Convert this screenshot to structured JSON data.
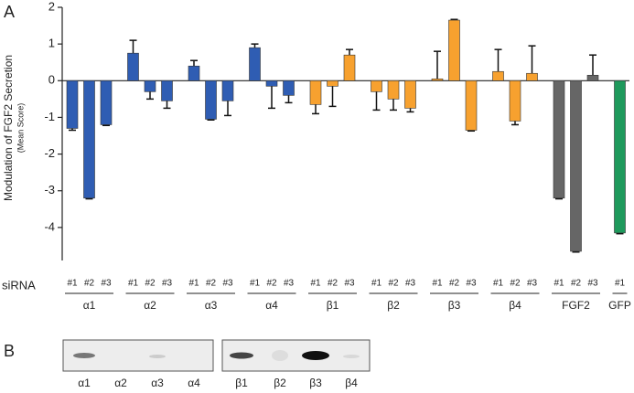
{
  "chart_data": {
    "type": "bar",
    "panel_label": "A",
    "y_label": "Modulation of FGF2 Secretion",
    "y_sublabel": "(Mean Score)",
    "x_label": "siRNA",
    "ylim": [
      -4.9,
      2
    ],
    "yticks": [
      2,
      1,
      0,
      -1,
      -2,
      -3,
      -4
    ],
    "groups": [
      {
        "name": "α1",
        "color": "#2f5db3",
        "labels": [
          "#1",
          "#2",
          "#3"
        ],
        "values": [
          -1.3,
          -3.2,
          -1.2
        ],
        "errors": [
          0.05,
          0.02,
          0.02
        ]
      },
      {
        "name": "α2",
        "color": "#2f5db3",
        "labels": [
          "#1",
          "#2",
          "#3"
        ],
        "values": [
          0.75,
          -0.3,
          -0.55
        ],
        "errors": [
          0.35,
          0.2,
          0.2
        ]
      },
      {
        "name": "α3",
        "color": "#2f5db3",
        "labels": [
          "#1",
          "#2",
          "#3"
        ],
        "values": [
          0.4,
          -1.05,
          -0.55
        ],
        "errors": [
          0.15,
          0.02,
          0.4
        ]
      },
      {
        "name": "α4",
        "color": "#2f5db3",
        "labels": [
          "#1",
          "#2",
          "#3"
        ],
        "values": [
          0.9,
          -0.15,
          -0.4
        ],
        "errors": [
          0.1,
          0.6,
          0.2
        ]
      },
      {
        "name": "β1",
        "color": "#f7a12f",
        "labels": [
          "#1",
          "#2",
          "#3"
        ],
        "values": [
          -0.65,
          -0.15,
          0.7
        ],
        "errors": [
          0.25,
          0.55,
          0.15
        ]
      },
      {
        "name": "β2",
        "color": "#f7a12f",
        "labels": [
          "#1",
          "#2",
          "#3"
        ],
        "values": [
          -0.3,
          -0.5,
          -0.75
        ],
        "errors": [
          0.5,
          0.3,
          0.1
        ]
      },
      {
        "name": "β3",
        "color": "#f7a12f",
        "labels": [
          "#1",
          "#2",
          "#3"
        ],
        "values": [
          0.05,
          1.65,
          -1.35
        ],
        "errors": [
          0.75,
          0.02,
          0.02
        ]
      },
      {
        "name": "β4",
        "color": "#f7a12f",
        "labels": [
          "#1",
          "#2",
          "#3"
        ],
        "values": [
          0.25,
          -1.1,
          0.2
        ],
        "errors": [
          0.6,
          0.1,
          0.75
        ]
      },
      {
        "name": "FGF2",
        "color": "#666666",
        "labels": [
          "#1",
          "#2",
          "#3"
        ],
        "values": [
          -3.2,
          -4.65,
          0.15
        ],
        "errors": [
          0.02,
          0.02,
          0.55
        ]
      },
      {
        "name": "GFP",
        "color": "#1e9a5c",
        "labels": [
          "#1"
        ],
        "values": [
          -4.15
        ],
        "errors": [
          0.02
        ]
      }
    ]
  },
  "panel_b": {
    "label": "B",
    "lanes": [
      "α1",
      "α2",
      "α3",
      "α4",
      "β1",
      "β2",
      "β3",
      "β4"
    ]
  }
}
